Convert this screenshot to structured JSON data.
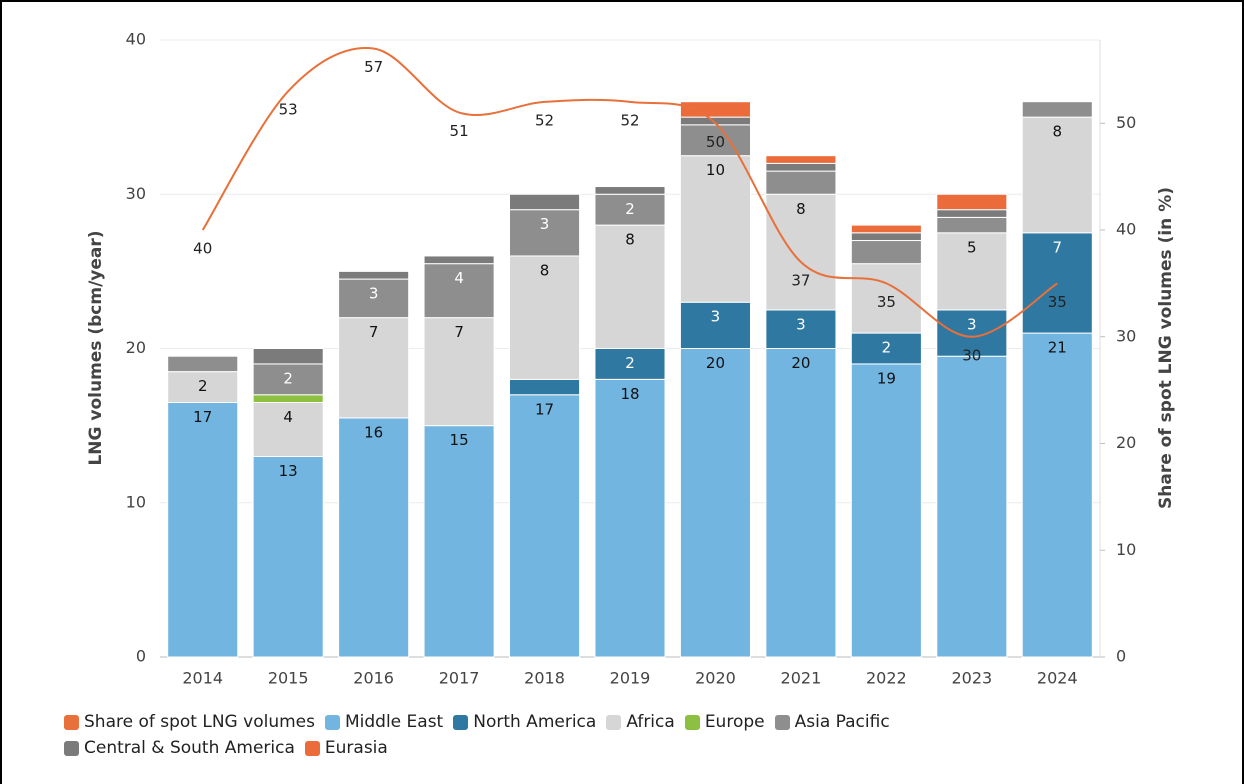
{
  "chart_data": {
    "type": "bar",
    "stacked": true,
    "categories": [
      "2014",
      "2015",
      "2016",
      "2017",
      "2018",
      "2019",
      "2020",
      "2021",
      "2022",
      "2023",
      "2024"
    ],
    "y_label": "LNG volumes (bcm/year)",
    "y2_label": "Share of spot LNG volumes (in %)",
    "ylim": [
      0,
      40
    ],
    "yticks": [
      0,
      10,
      20,
      30,
      40
    ],
    "y2lim": [
      0,
      57.8
    ],
    "y2ticks": [
      0,
      10,
      20,
      30,
      40,
      50
    ],
    "grid": true,
    "legend": "bottom-left",
    "series": [
      {
        "name": "Share of spot LNG volumes",
        "type": "line",
        "axis": "y2",
        "color": "#e8703a",
        "values": [
          40,
          53,
          57,
          51,
          52,
          52,
          50,
          37,
          35,
          30,
          35
        ]
      },
      {
        "name": "Middle East",
        "color": "#72b5e0",
        "values": [
          16.5,
          13,
          15.5,
          15,
          17,
          18,
          20,
          20,
          19,
          19.5,
          21
        ],
        "value_labels": [
          "17",
          "13",
          "16",
          "15",
          "17",
          "18",
          "20",
          "20",
          "19",
          null,
          "21"
        ]
      },
      {
        "name": "North America",
        "color": "#2e78a2",
        "values": [
          0,
          0,
          0,
          0,
          1,
          2,
          3,
          2.5,
          2,
          3,
          6.5
        ],
        "value_labels": [
          null,
          null,
          null,
          null,
          null,
          "2",
          "3",
          "3",
          "2",
          "3",
          "7"
        ]
      },
      {
        "name": "Africa",
        "color": "#d6d6d6",
        "values": [
          2,
          3.5,
          6.5,
          7,
          8,
          8,
          9.5,
          7.5,
          4.5,
          5,
          7.5
        ],
        "value_labels": [
          "2",
          "4",
          "7",
          "7",
          "8",
          "8",
          "10",
          "8",
          null,
          "5",
          "8"
        ]
      },
      {
        "name": "Europe",
        "color": "#8dbf40",
        "values": [
          0,
          0.5,
          0,
          0,
          0,
          0,
          0,
          0,
          0,
          0,
          0
        ]
      },
      {
        "name": "Asia Pacific",
        "color": "#8e8e8e",
        "values": [
          1,
          2,
          2.5,
          3.5,
          3,
          2,
          2,
          1.5,
          1.5,
          1,
          1
        ],
        "value_labels": [
          null,
          "2",
          "3",
          "4",
          "3",
          "2",
          null,
          null,
          null,
          null,
          null
        ]
      },
      {
        "name": "Central & South America",
        "color": "#7b7b7b",
        "values": [
          0,
          1,
          0.5,
          0.5,
          1,
          0.5,
          0.5,
          0.5,
          0.5,
          0.5,
          0
        ]
      },
      {
        "name": "Eurasia",
        "color": "#ec6b3a",
        "values": [
          0,
          0,
          0,
          0,
          0,
          0,
          1,
          0.5,
          0.5,
          1,
          0
        ]
      }
    ]
  }
}
